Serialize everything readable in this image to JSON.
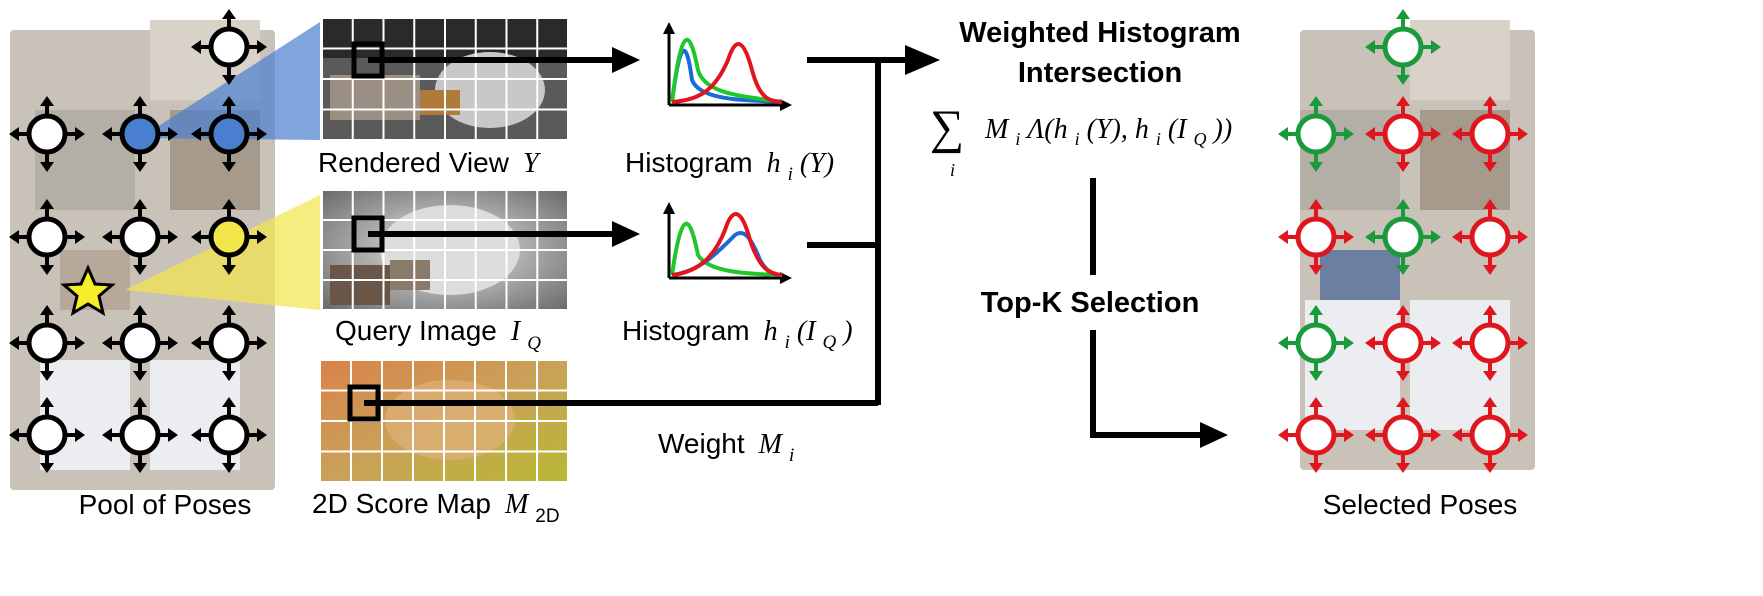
{
  "labels": {
    "pool": "Pool of Poses",
    "rendered_view": "Rendered View",
    "rendered_sym": "Y",
    "query_image": "Query Image",
    "query_sym": "I",
    "query_sub": "Q",
    "score_map": "2D Score Map",
    "score_sym": "M",
    "score_sub": "2D",
    "hist_y": "Histogram",
    "hist_y_sym": "h",
    "hist_y_sub": "i",
    "hist_y_arg": "(Y)",
    "hist_q": "Histogram",
    "hist_q_sym": "h",
    "hist_q_sub": "i",
    "hist_q_arg": "(I",
    "hist_q_arg_sub": "Q",
    "hist_q_close": ")",
    "weight": "Weight",
    "weight_sym": "M",
    "weight_sub": "i",
    "whi_line1": "Weighted Histogram",
    "whi_line2": "Intersection",
    "formula_sum": "∑",
    "formula_index": "i",
    "formula_body": "M",
    "formula_body_sub": "i",
    "formula_rest": "Λ(h",
    "formula_rest_sub": "i",
    "formula_rest2": "(Y), h",
    "formula_rest2_sub": "i",
    "formula_rest3": "(I",
    "formula_rest3_sub": "Q",
    "formula_rest4": "))",
    "topk": "Top-K Selection",
    "selected": "Selected Poses"
  },
  "colors": {
    "selected_pose": "#1a9a3a",
    "rejected_pose": "#e0161e",
    "pool_pose": "#000000",
    "view_fov": "#4a7fd0",
    "query_fov": "#f2e64a",
    "star": "#f5ec2a",
    "hist_red": "#e0161e",
    "hist_green": "#1ec82a",
    "hist_blue": "#1a6ad8"
  },
  "selected_grid": [
    [
      "",
      "selected",
      ""
    ],
    [
      "selected",
      "rejected",
      "rejected"
    ],
    [
      "rejected",
      "selected",
      "rejected"
    ],
    [
      "selected",
      "rejected",
      "rejected"
    ],
    [
      "rejected",
      "rejected",
      "rejected"
    ]
  ]
}
